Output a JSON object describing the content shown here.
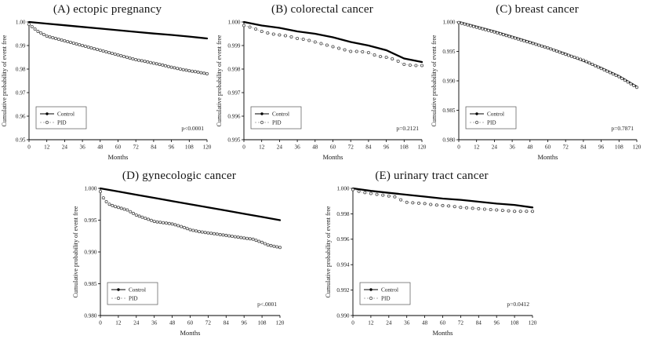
{
  "figure": {
    "description": "Cumulative probability of event free curves, Control vs PID",
    "colors": {
      "control_line": "#000000",
      "pid_marker_stroke": "#4a4a4a",
      "pid_connector": "#999999",
      "axis": "#000000",
      "background": "#ffffff"
    }
  },
  "chart_data": [
    {
      "id": "A",
      "type": "line",
      "title": "(A) ectopic pregnancy",
      "xlabel": "Months",
      "ylabel": "Cumulative probability of event free",
      "xlim": [
        0,
        120
      ],
      "xticks": [
        0,
        12,
        24,
        36,
        48,
        60,
        72,
        84,
        96,
        108,
        120
      ],
      "ylim": [
        0.95,
        1.0
      ],
      "yticks": [
        1.0,
        0.99,
        0.98,
        0.97,
        0.96,
        0.95
      ],
      "ytick_labels": [
        "1.00",
        "0.99",
        "0.98",
        "0.97",
        "0.96",
        "0.95"
      ],
      "p_value": "p<0.0001",
      "legend": [
        "Control",
        "PID"
      ],
      "legend_position": "lower-left",
      "grid": false,
      "pid_marker_step_months": 2,
      "series": [
        {
          "name": "Control",
          "marker": "filled-dot",
          "line": "solid",
          "x": [
            0,
            12,
            24,
            36,
            48,
            60,
            72,
            84,
            96,
            108,
            120
          ],
          "y": [
            1.0,
            0.9993,
            0.9986,
            0.9979,
            0.9972,
            0.9965,
            0.9958,
            0.9951,
            0.9945,
            0.9938,
            0.993
          ]
        },
        {
          "name": "PID",
          "marker": "open-circle",
          "line": "dotted",
          "x": [
            0,
            3,
            6,
            12,
            18,
            24,
            30,
            36,
            42,
            48,
            54,
            60,
            66,
            72,
            78,
            84,
            90,
            96,
            102,
            108,
            114,
            120
          ],
          "y": [
            0.999,
            0.9975,
            0.996,
            0.994,
            0.993,
            0.992,
            0.991,
            0.99,
            0.989,
            0.988,
            0.987,
            0.986,
            0.985,
            0.984,
            0.9833,
            0.9825,
            0.9817,
            0.9808,
            0.98,
            0.9793,
            0.9787,
            0.978
          ]
        }
      ]
    },
    {
      "id": "B",
      "type": "line",
      "title": "(B) colorectal cancer",
      "xlabel": "Months",
      "ylabel": "Cumulative probability of event free",
      "xlim": [
        0,
        120
      ],
      "xticks": [
        0,
        12,
        24,
        36,
        48,
        60,
        72,
        84,
        96,
        108,
        120
      ],
      "ylim": [
        0.995,
        1.0
      ],
      "yticks": [
        1.0,
        0.999,
        0.998,
        0.997,
        0.996,
        0.995
      ],
      "ytick_labels": [
        "1.000",
        "0.999",
        "0.998",
        "0.997",
        "0.996",
        "0.995"
      ],
      "p_value": "p=0.2121",
      "legend": [
        "Control",
        "PID"
      ],
      "legend_position": "lower-left",
      "grid": false,
      "pid_marker_step_months": 4,
      "series": [
        {
          "name": "Control",
          "marker": "filled-dot",
          "line": "solid",
          "x": [
            0,
            12,
            24,
            36,
            48,
            60,
            72,
            84,
            96,
            108,
            120
          ],
          "y": [
            1.0,
            0.99985,
            0.99975,
            0.9996,
            0.9995,
            0.99935,
            0.99915,
            0.999,
            0.9988,
            0.99845,
            0.9983
          ]
        },
        {
          "name": "PID",
          "marker": "open-circle",
          "line": "dotted",
          "x": [
            0,
            6,
            12,
            18,
            24,
            30,
            36,
            42,
            48,
            54,
            60,
            66,
            72,
            78,
            84,
            90,
            96,
            102,
            108,
            114,
            120
          ],
          "y": [
            0.99985,
            0.99975,
            0.9996,
            0.9995,
            0.99945,
            0.9994,
            0.9993,
            0.99925,
            0.99915,
            0.99905,
            0.99895,
            0.99885,
            0.99875,
            0.99875,
            0.9987,
            0.99855,
            0.9985,
            0.9984,
            0.9982,
            0.99815,
            0.99815
          ]
        }
      ]
    },
    {
      "id": "C",
      "type": "line",
      "title": "(C) breast cancer",
      "xlabel": "Months",
      "ylabel": "Cumulative probability of event free",
      "xlim": [
        0,
        120
      ],
      "xticks": [
        0,
        12,
        24,
        36,
        48,
        60,
        72,
        84,
        96,
        108,
        120
      ],
      "ylim": [
        0.98,
        1.0
      ],
      "yticks": [
        1.0,
        0.995,
        0.99,
        0.985,
        0.98
      ],
      "ytick_labels": [
        "1.000",
        "0.995",
        "0.990",
        "0.985",
        "0.980"
      ],
      "p_value": "p=0.7871",
      "legend": [
        "Control",
        "PID"
      ],
      "legend_position": "lower-left",
      "grid": false,
      "pid_marker_step_months": 2,
      "series": [
        {
          "name": "Control",
          "marker": "filled-dot",
          "line": "solid",
          "x": [
            0,
            12,
            24,
            36,
            48,
            60,
            72,
            84,
            96,
            108,
            120
          ],
          "y": [
            1.0,
            0.9992,
            0.9984,
            0.9975,
            0.9966,
            0.9956,
            0.9946,
            0.9934,
            0.9922,
            0.9908,
            0.989
          ]
        },
        {
          "name": "PID",
          "marker": "open-circle",
          "line": "dotted",
          "x": [
            0,
            12,
            24,
            36,
            48,
            60,
            72,
            84,
            96,
            108,
            120
          ],
          "y": [
            0.9999,
            0.9991,
            0.9983,
            0.9974,
            0.9965,
            0.9956,
            0.9945,
            0.9935,
            0.9921,
            0.9907,
            0.9889
          ]
        }
      ]
    },
    {
      "id": "D",
      "type": "line",
      "title": "(D) gynecologic cancer",
      "xlabel": "Months",
      "ylabel": "Cumulative probability of event free",
      "xlim": [
        0,
        120
      ],
      "xticks": [
        0,
        12,
        24,
        36,
        48,
        60,
        72,
        84,
        96,
        108,
        120
      ],
      "ylim": [
        0.98,
        1.0
      ],
      "yticks": [
        1.0,
        0.995,
        0.99,
        0.985,
        0.98
      ],
      "ytick_labels": [
        "1.000",
        "0.995",
        "0.990",
        "0.985",
        "0.980"
      ],
      "p_value": "p<.0001",
      "legend": [
        "Control",
        "PID"
      ],
      "legend_position": "lower-left",
      "grid": false,
      "pid_marker_step_months": 2,
      "series": [
        {
          "name": "Control",
          "marker": "filled-dot",
          "line": "solid",
          "x": [
            0,
            12,
            24,
            36,
            48,
            60,
            72,
            84,
            96,
            108,
            120
          ],
          "y": [
            1.0,
            0.9995,
            0.999,
            0.9985,
            0.998,
            0.9975,
            0.997,
            0.9965,
            0.996,
            0.9955,
            0.995
          ]
        },
        {
          "name": "PID",
          "marker": "open-circle",
          "line": "dotted",
          "x": [
            0,
            2,
            4,
            6,
            9,
            12,
            18,
            24,
            30,
            36,
            42,
            48,
            54,
            60,
            66,
            72,
            78,
            84,
            90,
            96,
            102,
            108,
            112,
            116,
            120
          ],
          "y": [
            0.9995,
            0.9985,
            0.9979,
            0.9975,
            0.9972,
            0.997,
            0.9966,
            0.9958,
            0.9953,
            0.9948,
            0.9946,
            0.9944,
            0.994,
            0.9935,
            0.9932,
            0.993,
            0.9928,
            0.9926,
            0.9924,
            0.9922,
            0.992,
            0.9915,
            0.9911,
            0.9909,
            0.9907
          ]
        }
      ]
    },
    {
      "id": "E",
      "type": "line",
      "title": "(E) urinary tract cancer",
      "xlabel": "Months",
      "ylabel": "Cumulative probability of event free",
      "xlim": [
        0,
        120
      ],
      "xticks": [
        0,
        12,
        24,
        36,
        48,
        60,
        72,
        84,
        96,
        108,
        120
      ],
      "ylim": [
        0.99,
        1.0
      ],
      "yticks": [
        1.0,
        0.998,
        0.996,
        0.994,
        0.992,
        0.99
      ],
      "ytick_labels": [
        "1.000",
        "0.998",
        "0.996",
        "0.994",
        "0.992",
        "0.990"
      ],
      "p_value": "p=0.0412",
      "legend": [
        "Control",
        "PID"
      ],
      "legend_position": "lower-left",
      "grid": false,
      "pid_marker_step_months": 4,
      "series": [
        {
          "name": "Control",
          "marker": "filled-dot",
          "line": "solid",
          "x": [
            0,
            12,
            24,
            36,
            48,
            60,
            72,
            84,
            96,
            108,
            120
          ],
          "y": [
            1.0,
            0.9998,
            0.99965,
            0.9995,
            0.99935,
            0.9992,
            0.9991,
            0.99895,
            0.9988,
            0.9987,
            0.9985
          ]
        },
        {
          "name": "PID",
          "marker": "open-circle",
          "line": "dotted",
          "x": [
            0,
            6,
            12,
            18,
            24,
            30,
            33,
            36,
            42,
            48,
            54,
            60,
            66,
            72,
            78,
            84,
            90,
            96,
            102,
            108,
            114,
            120
          ],
          "y": [
            0.9999,
            0.9997,
            0.9996,
            0.9995,
            0.9994,
            0.9993,
            0.999,
            0.9989,
            0.99885,
            0.9988,
            0.9987,
            0.99865,
            0.9986,
            0.9985,
            0.99845,
            0.9984,
            0.99835,
            0.9983,
            0.99825,
            0.9982,
            0.9982,
            0.9982
          ]
        }
      ]
    }
  ]
}
